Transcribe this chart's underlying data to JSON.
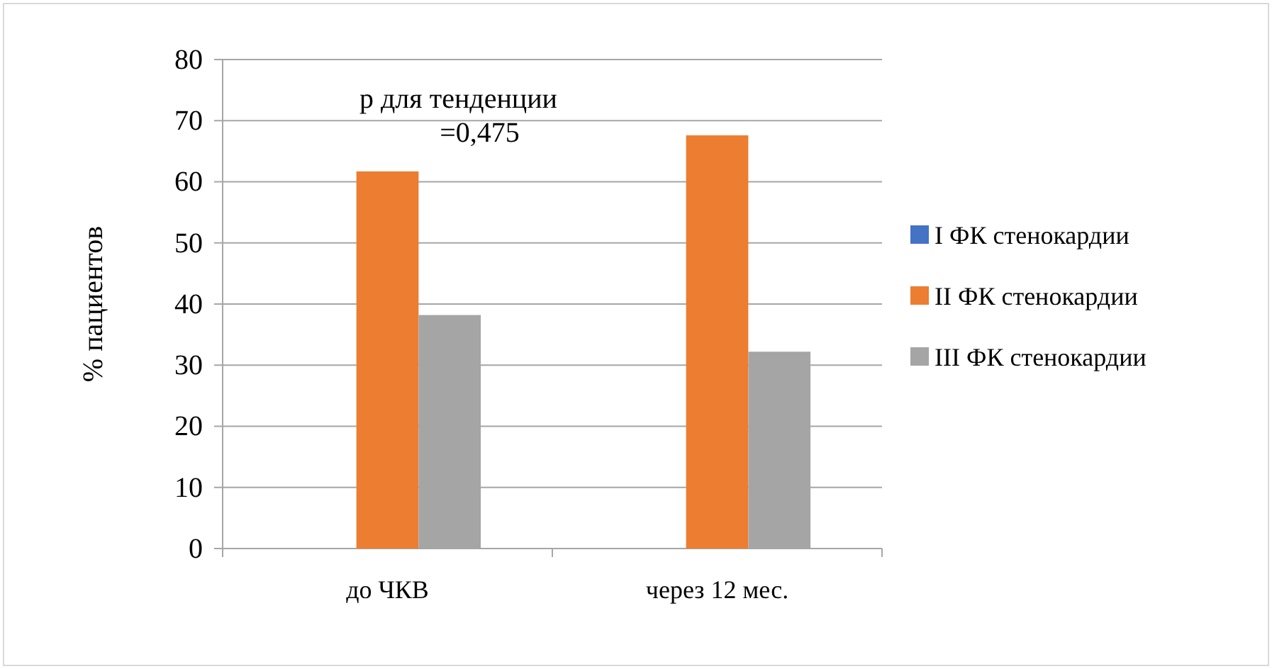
{
  "chart_data": {
    "type": "bar",
    "ylabel": "% пациентов",
    "categories": [
      "до ЧКВ",
      "через 12 мес."
    ],
    "series": [
      {
        "name": "I ФК стенокардии",
        "color": "#4472c4",
        "values": [
          0,
          0
        ]
      },
      {
        "name": "II ФК стенокардии",
        "color": "#ed7d31",
        "values": [
          61.7,
          67.6
        ]
      },
      {
        "name": "III ФК стенокардии",
        "color": "#a5a5a5",
        "values": [
          38.2,
          32.2
        ]
      }
    ],
    "ylim": [
      0,
      80
    ],
    "yticks": [
      0,
      10,
      20,
      30,
      40,
      50,
      60,
      70,
      80
    ],
    "grid": "y",
    "legend": "right",
    "annotations": [
      "р для тенденции\n=0,475"
    ]
  }
}
